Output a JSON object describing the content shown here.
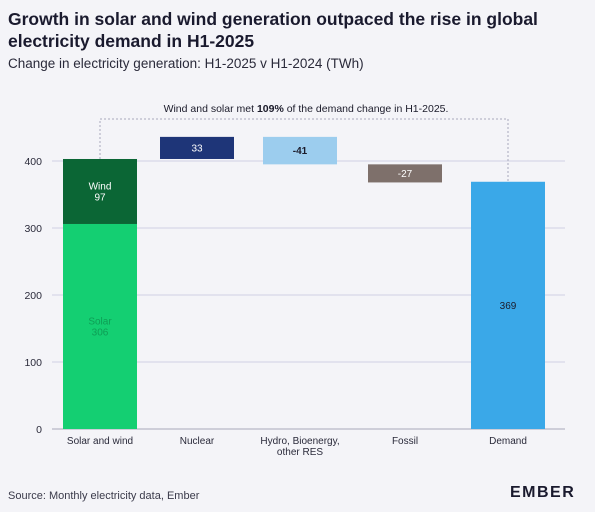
{
  "title": "Growth in solar and wind generation outpaced the rise in global electricity demand in H1-2025",
  "subtitle": "Change in electricity generation: H1-2025 v H1-2024 (TWh)",
  "annotation": {
    "prefix": "Wind and solar met ",
    "highlight": "109%",
    "suffix": " of the demand change in H1-2025."
  },
  "source": "Source: Monthly electricity data, Ember",
  "logo": "EMBER",
  "chart_data": {
    "type": "bar",
    "subtype": "waterfall",
    "categories": [
      "Solar and wind",
      "Nuclear",
      "Hydro, Bioenergy, other RES",
      "Fossil",
      "Demand"
    ],
    "category_lines": [
      [
        "Solar and wind"
      ],
      [
        "Nuclear"
      ],
      [
        "Hydro, Bioenergy,",
        "other RES"
      ],
      [
        "Fossil"
      ],
      [
        "Demand"
      ]
    ],
    "bars": [
      {
        "category": "Solar and wind",
        "segments": [
          {
            "name": "Solar",
            "value": 306,
            "label_lines": [
              "Solar",
              "306"
            ],
            "color": "#14cf72",
            "text_color": "#0e9e55"
          },
          {
            "name": "Wind",
            "value": 97,
            "label_lines": [
              "Wind",
              "97"
            ],
            "color": "#0b6635",
            "text_color": "#ffffff"
          }
        ]
      },
      {
        "category": "Nuclear",
        "start": 403,
        "value": 33,
        "label": "33",
        "color": "#1e3578",
        "text_color": "#ffffff"
      },
      {
        "category": "Hydro, Bioenergy, other RES",
        "start": 436,
        "value": -41,
        "label": "-41",
        "color": "#9ccdee",
        "text_color": "#1b1b2a"
      },
      {
        "category": "Fossil",
        "start": 395,
        "value": -27,
        "label": "-27",
        "color": "#7e706b",
        "text_color": "#ffffff"
      },
      {
        "category": "Demand",
        "start": 0,
        "value": 369,
        "label": "369",
        "color": "#3aa8e8",
        "text_color": "#1b1b2a"
      }
    ],
    "yticks": [
      0,
      100,
      200,
      300,
      400
    ],
    "ylim": [
      0,
      450
    ],
    "xlabel": "",
    "ylabel": "",
    "grid": true
  }
}
